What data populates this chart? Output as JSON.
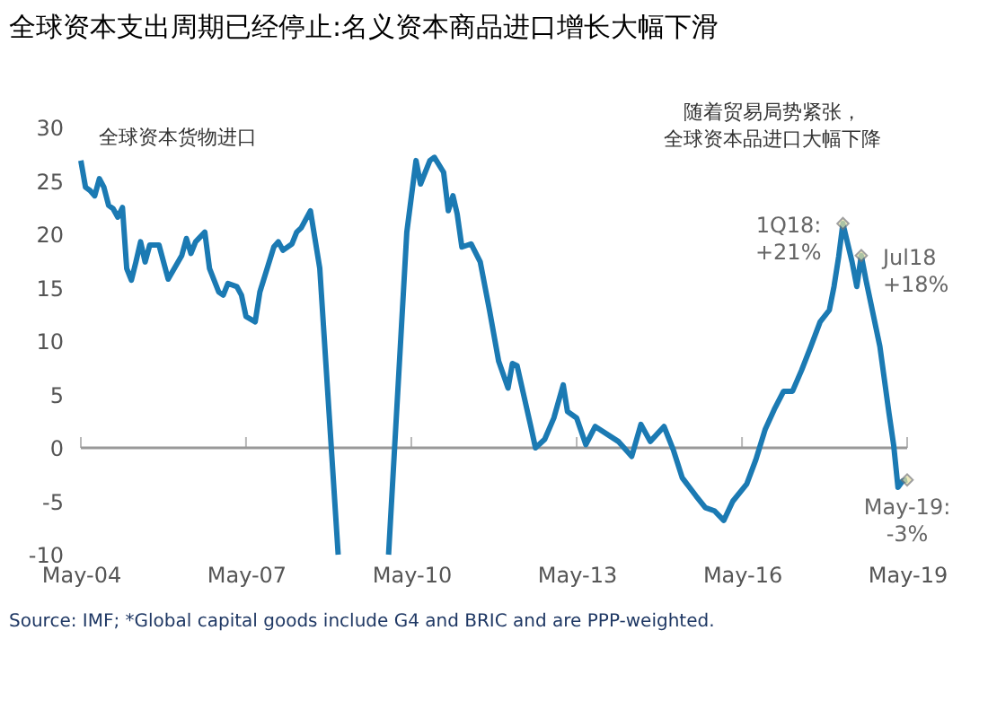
{
  "chart_data": {
    "type": "line",
    "title": "全球资本支出周期已经停止:名义资本商品进口增长大幅下滑",
    "ylabel": "全球资本货物进口",
    "x": [
      "2004-05",
      "2004-06",
      "2004-07",
      "2004-08",
      "2004-09",
      "2004-10",
      "2004-11",
      "2004-12",
      "2005-01",
      "2005-02",
      "2005-03",
      "2005-04",
      "2005-05",
      "2005-06",
      "2005-07",
      "2005-08",
      "2005-10",
      "2005-12",
      "2006-03",
      "2006-04",
      "2006-05",
      "2006-06",
      "2006-08",
      "2006-09",
      "2006-11",
      "2006-12",
      "2007-01",
      "2007-03",
      "2007-04",
      "2007-05",
      "2007-07",
      "2007-08",
      "2007-11",
      "2007-12",
      "2008-01",
      "2008-03",
      "2008-04",
      "2008-05",
      "2008-07",
      "2008-09",
      "2009-01",
      "2009-06",
      "2009-12",
      "2010-04",
      "2010-06",
      "2010-07",
      "2010-09",
      "2010-10",
      "2010-12",
      "2011-01",
      "2011-02",
      "2011-03",
      "2011-04",
      "2011-06",
      "2011-08",
      "2011-10",
      "2011-12",
      "2012-02",
      "2012-03",
      "2012-04",
      "2012-07",
      "2012-08",
      "2012-10",
      "2012-12",
      "2013-02",
      "2013-03",
      "2013-05",
      "2013-07",
      "2013-09",
      "2014-02",
      "2014-05",
      "2014-07",
      "2014-09",
      "2014-12",
      "2015-02",
      "2015-04",
      "2015-07",
      "2015-09",
      "2015-11",
      "2016-01",
      "2016-03",
      "2016-06",
      "2016-08",
      "2016-10",
      "2016-12",
      "2017-02",
      "2017-04",
      "2017-06",
      "2017-08",
      "2017-10",
      "2017-12",
      "2018-01",
      "2018-02",
      "2018-03",
      "2018-05",
      "2018-06",
      "2018-07",
      "2018-08",
      "2018-11",
      "2019-01",
      "2019-02",
      "2019-03",
      "2019-04",
      "2019-05"
    ],
    "series": [
      {
        "color": "#1b7ab3",
        "values": [
          26.9,
          24.4,
          24.1,
          23.6,
          25.2,
          24.4,
          22.7,
          22.4,
          21.6,
          22.5,
          16.8,
          15.7,
          17.4,
          19.3,
          17.4,
          19.0,
          19.0,
          15.8,
          18.0,
          19.6,
          18.2,
          19.3,
          20.2,
          16.8,
          14.6,
          14.3,
          15.4,
          15.1,
          14.3,
          12.3,
          11.8,
          14.6,
          18.8,
          19.3,
          18.5,
          19.1,
          20.2,
          20.6,
          22.2,
          16.8,
          -10,
          null,
          -10,
          20.2,
          26.9,
          24.7,
          26.9,
          27.2,
          25.8,
          22.2,
          23.6,
          21.9,
          18.8,
          19.1,
          17.4,
          12.9,
          8.1,
          5.6,
          7.9,
          7.7,
          2.0,
          0.0,
          0.8,
          2.8,
          5.9,
          3.4,
          2.8,
          0.3,
          2.0,
          0.6,
          -0.8,
          2.2,
          0.6,
          2.0,
          -0.2,
          -2.8,
          -4.5,
          -5.6,
          -5.9,
          -6.8,
          -5.0,
          -3.4,
          -1.1,
          1.7,
          3.6,
          5.3,
          5.3,
          7.3,
          9.5,
          11.8,
          12.9,
          15.1,
          17.9,
          21,
          17.4,
          15.1,
          18,
          15.7,
          9.5,
          3.2,
          0.2,
          -3.7,
          -3.1,
          -3
        ]
      }
    ],
    "xlim": [
      "2004-05",
      "2019-05"
    ],
    "xticks": [
      {
        "value": "2004-05",
        "label": "May-04"
      },
      {
        "value": "2007-05",
        "label": "May-07"
      },
      {
        "value": "2010-05",
        "label": "May-10"
      },
      {
        "value": "2013-05",
        "label": "May-13"
      },
      {
        "value": "2016-05",
        "label": "May-16"
      },
      {
        "value": "2019-05",
        "label": "May-19"
      }
    ],
    "ylim": [
      -10,
      30
    ],
    "yticks": [
      -10,
      -5,
      0,
      5,
      10,
      15,
      20,
      25,
      30
    ],
    "ref_lines": [
      {
        "axis": "y",
        "value": 0,
        "color": "#999999"
      }
    ],
    "grid": false,
    "marker": "none",
    "line_style": "solid",
    "annotations": [
      {
        "text": "1Q18:\n+21%",
        "x": "2018-03",
        "y": 21
      },
      {
        "text": "Jul18\n+18%",
        "x": "2018-07",
        "y": 18
      },
      {
        "text": "May-19:\n-3%",
        "x": "2019-05",
        "y": -3
      },
      "随着贸易局势紧张，全球资本品进口大幅下降",
      "Source: IMF; *Global capital goods include G4 and BRIC and are PPP-weighted."
    ]
  }
}
